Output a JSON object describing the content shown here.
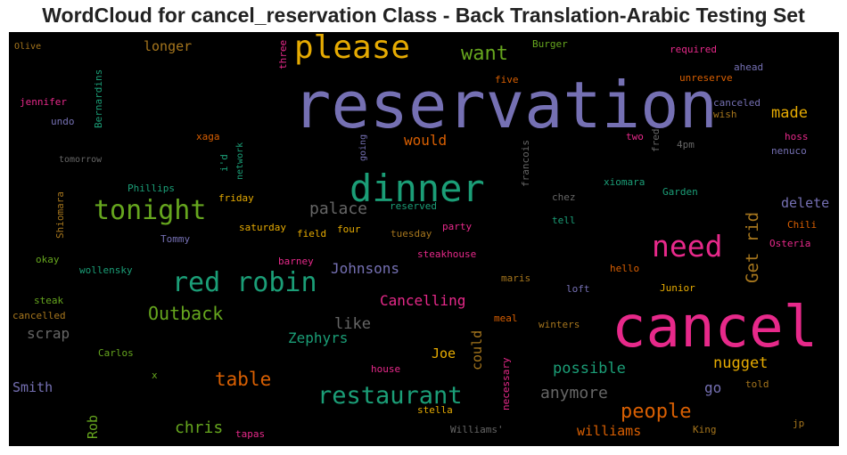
{
  "title": "WordCloud for cancel_reservation Class - Back Translation-Arabic Testing Set",
  "palette": {
    "purple": "#7570b3",
    "pink": "#e7298a",
    "green": "#1b9e77",
    "lime": "#66a61e",
    "orange": "#d95f02",
    "gold": "#e6ab02",
    "brown": "#a6761d",
    "gray": "#666666"
  },
  "words": {
    "reservation": "reservation",
    "cancel": "cancel",
    "dinner": "dinner",
    "please": "please",
    "tonight": "tonight",
    "need": "need",
    "red_robin": "red robin",
    "restaurant": "restaurant",
    "want": "want",
    "people": "people",
    "outback": "Outback",
    "table": "table",
    "get_rid": "Get rid",
    "possible": "possible",
    "anymore": "anymore",
    "chris": "chris",
    "nugget": "nugget",
    "made": "made",
    "would": "would",
    "palace": "palace",
    "johnsons": "Johnsons",
    "cancelling": "Cancelling",
    "zephyrs": "Zephyrs",
    "like": "like",
    "scrap": "scrap",
    "smith": "Smith",
    "joe": "Joe",
    "could": "could",
    "go": "go",
    "williams": "williams",
    "rob": "Rob",
    "longer": "longer",
    "delete": "delete",
    "olive": "Olive",
    "jennifer": "jennifer",
    "undo": "undo",
    "tomorrow": "tomorrow",
    "bernardins": "Bernardins",
    "three": "three",
    "xaga": "xaga",
    "network": "network",
    "id": "i'd",
    "going": "going",
    "francois": "francois",
    "five": "five",
    "burger": "Burger",
    "required": "required",
    "ahead": "ahead",
    "unreserve": "unreserve",
    "canceled": "canceled",
    "wish": "wish",
    "two": "two",
    "fred": "fred",
    "pm4": "4pm",
    "hoss": "hoss",
    "nenuco": "nenuco",
    "xiomara": "xiomara",
    "chez": "chez",
    "garden": "Garden",
    "tell": "tell",
    "chili": "Chili",
    "osteria": "Osteria",
    "shiomara": "Shiomara",
    "phillips": "Phillips",
    "friday": "friday",
    "reserved": "reserved",
    "saturday": "saturday",
    "field": "field",
    "four": "four",
    "tuesday": "tuesday",
    "party": "party",
    "tommy": "Tommy",
    "okay": "okay",
    "wollensky": "wollensky",
    "barney": "barney",
    "steakhouse": "steakhouse",
    "hello": "hello",
    "maris": "maris",
    "loft": "loft",
    "junior": "Junior",
    "steak": "steak",
    "cancelled": "cancelled",
    "meal": "meal",
    "winters": "winters",
    "carlos": "Carlos",
    "x": "x",
    "necessary": "necessary",
    "house": "house",
    "told": "told",
    "stella": "stella",
    "tapas": "tapas",
    "williams2": "Williams'",
    "king": "King",
    "jp": "jp"
  }
}
